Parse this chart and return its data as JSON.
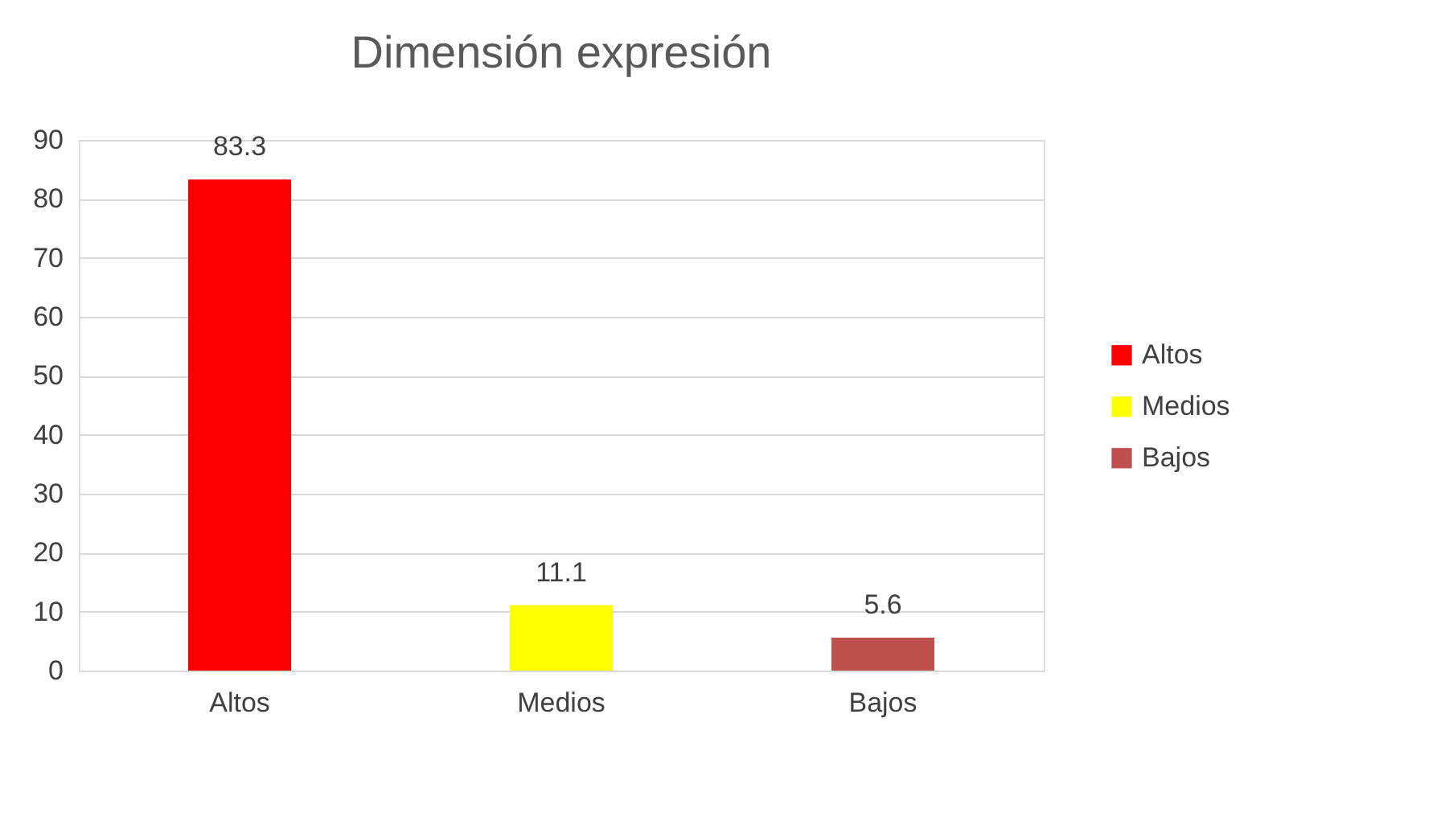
{
  "chart_data": {
    "type": "bar",
    "title": "Dimensión expresión",
    "categories": [
      "Altos",
      "Medios",
      "Bajos"
    ],
    "series": [
      {
        "name": "Altos",
        "color": "#ff0000",
        "values": [
          83.3,
          null,
          null
        ]
      },
      {
        "name": "Medios",
        "color": "#ffff00",
        "values": [
          null,
          11.1,
          null
        ]
      },
      {
        "name": "Bajos",
        "color": "#c0504d",
        "values": [
          null,
          null,
          5.6
        ]
      }
    ],
    "stacked": true,
    "ylim": [
      0,
      90
    ],
    "yticks": [
      0,
      10,
      20,
      30,
      40,
      50,
      60,
      70,
      80,
      90
    ],
    "grid": "y",
    "legend": "right",
    "data_labels": true
  }
}
